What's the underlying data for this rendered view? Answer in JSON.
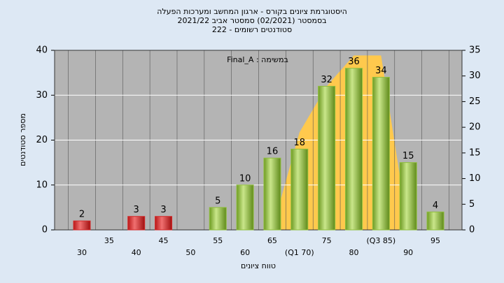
{
  "chart_data": {
    "type": "bar",
    "title": "היסטוגרמת ציונים בקורס - ארגון המחשב ומערכות הפעלה",
    "subtitle": [
      "בסמסטר  (02/2021)  סמסטר אביב 2021/22",
      "סטודנטים רשומים - 222"
    ],
    "annotation": "במשימה : Final_A",
    "x_label": "טווח ציונים",
    "y_label": "מספר סטודנטים",
    "categories": [
      "30",
      "35",
      "40",
      "45",
      "50",
      "55",
      "60",
      "65",
      "(Q1 70)",
      "75",
      "80",
      "(Q3 85)",
      "90",
      "95"
    ],
    "values": [
      2,
      null,
      3,
      3,
      null,
      5,
      10,
      16,
      18,
      32,
      36,
      34,
      15,
      4
    ],
    "colors": [
      "#d42a2a",
      null,
      "#d42a2a",
      "#d42a2a",
      null,
      "#8fbf3c",
      "#8fbf3c",
      "#8fbf3c",
      "#8fbf3c",
      "#8fbf3c",
      "#8fbf3c",
      "#8fbf3c",
      "#8fbf3c",
      "#8fbf3c"
    ],
    "area": {
      "color": "#ffc94d",
      "axis": "y2",
      "values": [
        null,
        null,
        null,
        null,
        null,
        null,
        null,
        0,
        19,
        28,
        34,
        34,
        0,
        null
      ]
    },
    "ylim": [
      0,
      40
    ],
    "yticks": [
      0,
      10,
      20,
      30,
      40
    ],
    "y2lim": [
      0,
      35
    ],
    "y2ticks": [
      0,
      5,
      10,
      15,
      20,
      25,
      30,
      35
    ],
    "grid": true
  }
}
